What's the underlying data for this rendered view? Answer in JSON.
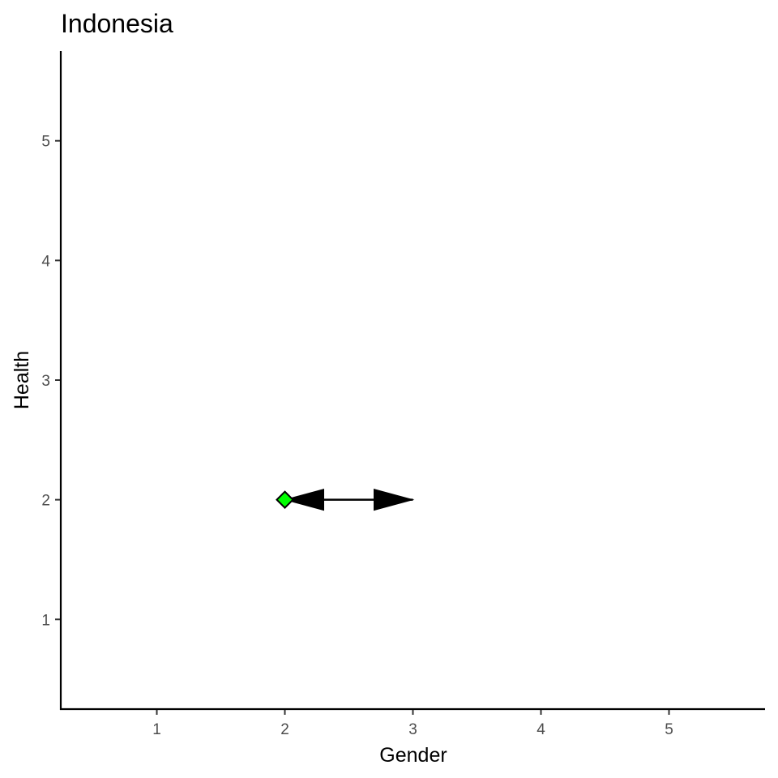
{
  "chart_data": {
    "type": "scatter",
    "title": "Indonesia",
    "xlabel": "Gender",
    "ylabel": "Health",
    "xlim": [
      0.25,
      5.75
    ],
    "ylim": [
      0.25,
      5.75
    ],
    "x_ticks": [
      1,
      2,
      3,
      4,
      5
    ],
    "y_ticks": [
      1,
      2,
      3,
      4,
      5
    ],
    "grid": false,
    "points": [
      {
        "x": 2,
        "y": 2,
        "shape": "diamond",
        "fill": "#00ff00",
        "stroke": "#000000"
      }
    ],
    "arrows": [
      {
        "x1": 2,
        "y1": 2,
        "x2": 3,
        "y2": 2,
        "both_ends": true,
        "color": "#000000"
      }
    ]
  }
}
